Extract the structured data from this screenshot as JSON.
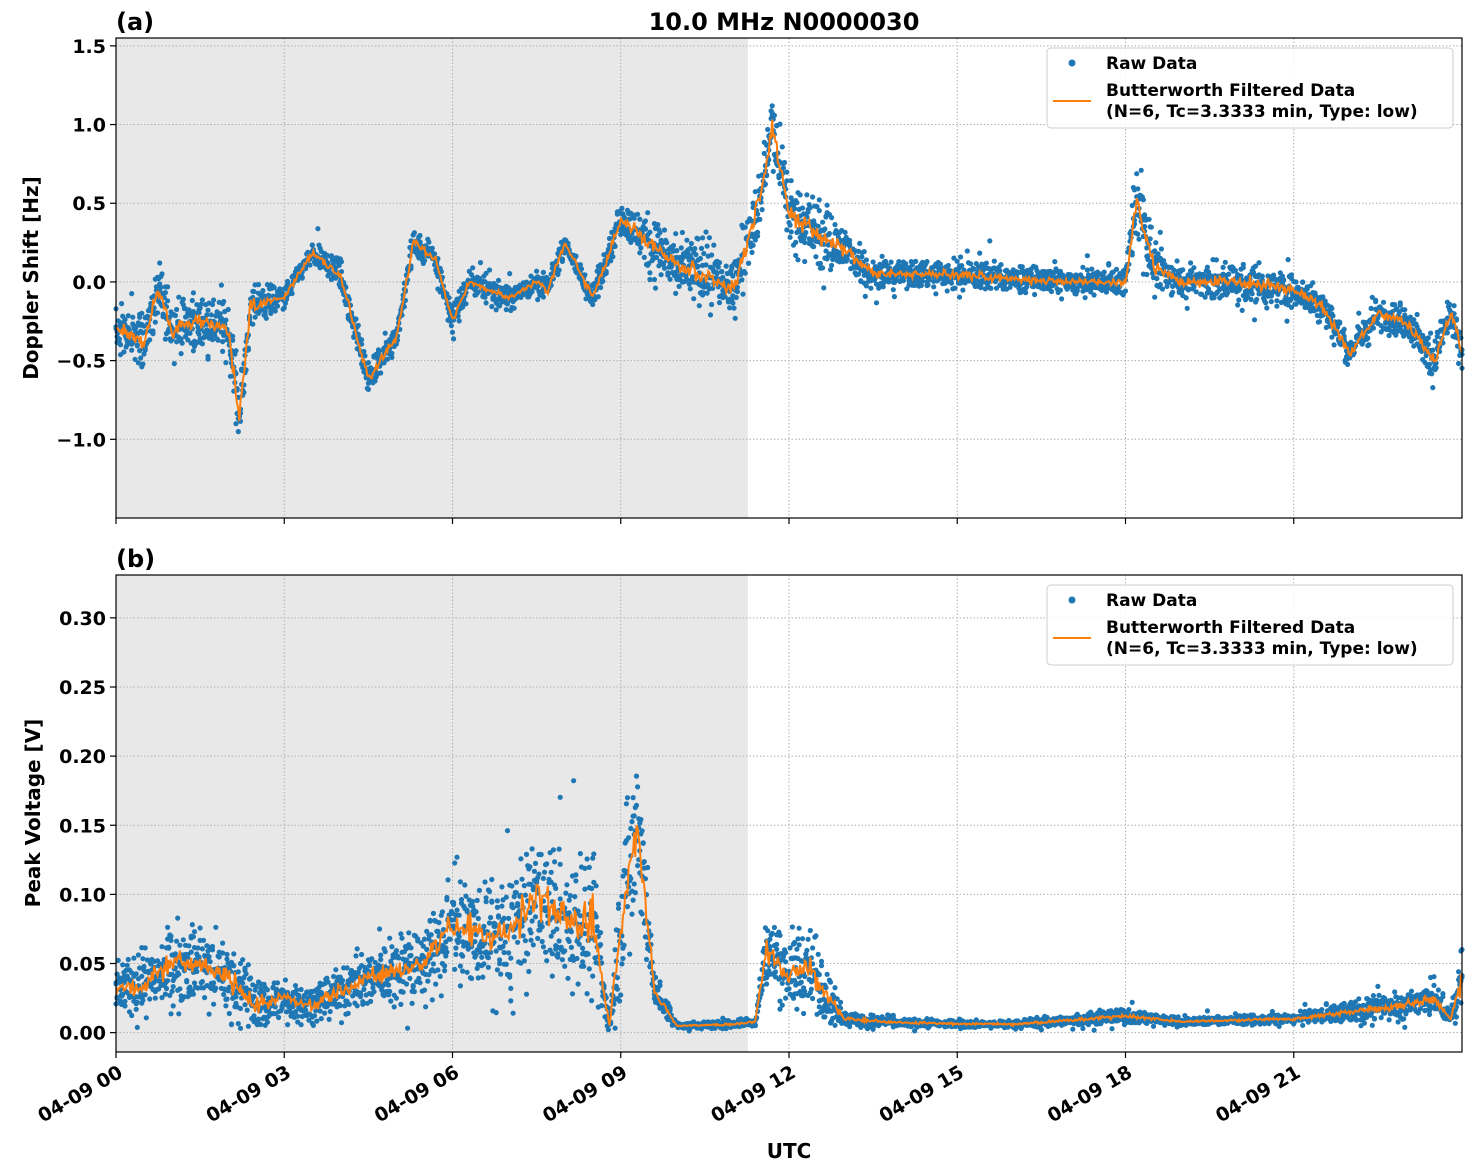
{
  "chart_data": [
    {
      "type": "scatter",
      "panel_label": "(a)",
      "title": "10.0 MHz N0000030",
      "xlabel": "",
      "ylabel": "Doppler Shift [Hz]",
      "xlim": [
        "04-09 00:00",
        "04-10 00:00"
      ],
      "ylim": [
        -1.5,
        1.55
      ],
      "yticks": [
        1.5,
        1.0,
        0.5,
        0.0,
        -0.5,
        -1.0
      ],
      "ytick_labels": [
        "1.5",
        "1.0",
        "0.5",
        "0.0",
        "−0.5",
        "−1.0"
      ],
      "grid": true,
      "shaded_interval": [
        "04-09 00:00",
        "04-09 11:16"
      ],
      "legend_placement": "top-right",
      "legend": [
        "Raw Data",
        "Butterworth Filtered Data",
        "(N=6, Tc=3.3333 min, Type: low)"
      ],
      "series_note_columns": [
        "time",
        "filtered",
        "raw_spread"
      ],
      "series": [
        [
          "04-09 00:00",
          -0.3,
          0.25
        ],
        [
          "04-09 00:30",
          -0.38,
          0.25
        ],
        [
          "04-09 00:45",
          -0.05,
          0.25
        ],
        [
          "04-09 01:00",
          -0.3,
          0.25
        ],
        [
          "04-09 01:30",
          -0.25,
          0.25
        ],
        [
          "04-09 02:00",
          -0.3,
          0.25
        ],
        [
          "04-09 02:12",
          -0.85,
          0.35
        ],
        [
          "04-09 02:24",
          -0.15,
          0.2
        ],
        [
          "04-09 03:00",
          -0.1,
          0.1
        ],
        [
          "04-09 03:30",
          0.18,
          0.1
        ],
        [
          "04-09 04:00",
          0.05,
          0.15
        ],
        [
          "04-09 04:30",
          -0.62,
          0.15
        ],
        [
          "04-09 05:00",
          -0.35,
          0.12
        ],
        [
          "04-09 05:18",
          0.25,
          0.12
        ],
        [
          "04-09 05:42",
          0.15,
          0.12
        ],
        [
          "04-09 06:00",
          -0.25,
          0.15
        ],
        [
          "04-09 06:18",
          0.0,
          0.12
        ],
        [
          "04-09 07:00",
          -0.1,
          0.1
        ],
        [
          "04-09 07:30",
          0.0,
          0.1
        ],
        [
          "04-09 07:42",
          -0.05,
          0.12
        ],
        [
          "04-09 08:00",
          0.25,
          0.1
        ],
        [
          "04-09 08:30",
          -0.1,
          0.12
        ],
        [
          "04-09 09:00",
          0.4,
          0.15
        ],
        [
          "04-09 09:30",
          0.25,
          0.25
        ],
        [
          "04-09 10:00",
          0.1,
          0.25
        ],
        [
          "04-09 10:30",
          0.05,
          0.3
        ],
        [
          "04-09 11:00",
          -0.05,
          0.25
        ],
        [
          "04-09 11:30",
          0.55,
          0.3
        ],
        [
          "04-09 11:42",
          1.0,
          0.35
        ],
        [
          "04-09 12:00",
          0.45,
          0.3
        ],
        [
          "04-09 12:30",
          0.3,
          0.3
        ],
        [
          "04-09 13:00",
          0.2,
          0.25
        ],
        [
          "04-09 13:30",
          0.05,
          0.15
        ],
        [
          "04-09 14:00",
          0.05,
          0.12
        ],
        [
          "04-09 15:00",
          0.05,
          0.15
        ],
        [
          "04-09 16:00",
          0.02,
          0.12
        ],
        [
          "04-09 17:00",
          0.0,
          0.1
        ],
        [
          "04-09 18:00",
          0.0,
          0.12
        ],
        [
          "04-09 18:12",
          0.55,
          0.4
        ],
        [
          "04-09 18:30",
          0.1,
          0.2
        ],
        [
          "04-09 19:00",
          0.0,
          0.15
        ],
        [
          "04-09 20:00",
          0.0,
          0.2
        ],
        [
          "04-09 21:00",
          -0.05,
          0.15
        ],
        [
          "04-09 21:30",
          -0.15,
          0.15
        ],
        [
          "04-09 22:00",
          -0.45,
          0.15
        ],
        [
          "04-09 22:30",
          -0.2,
          0.15
        ],
        [
          "04-09 23:00",
          -0.25,
          0.15
        ],
        [
          "04-09 23:30",
          -0.5,
          0.2
        ],
        [
          "04-09 23:48",
          -0.2,
          0.2
        ],
        [
          "04-10 00:00",
          -0.45,
          0.2
        ]
      ]
    },
    {
      "type": "scatter",
      "panel_label": "(b)",
      "xlabel": "UTC",
      "ylabel": "Peak Voltage [V]",
      "xlim": [
        "04-09 00:00",
        "04-10 00:00"
      ],
      "ylim": [
        -0.014,
        0.331
      ],
      "yticks": [
        0.3,
        0.25,
        0.2,
        0.15,
        0.1,
        0.05,
        0.0
      ],
      "ytick_labels": [
        "0.30",
        "0.25",
        "0.20",
        "0.15",
        "0.10",
        "0.05",
        "0.00"
      ],
      "xtick_labels": [
        "04-09 00",
        "04-09 03",
        "04-09 06",
        "04-09 09",
        "04-09 12",
        "04-09 15",
        "04-09 18",
        "04-09 21"
      ],
      "grid": true,
      "shaded_interval": [
        "04-09 00:00",
        "04-09 11:16"
      ],
      "legend_placement": "top-right",
      "legend": [
        "Raw Data",
        "Butterworth Filtered Data",
        "(N=6, Tc=3.3333 min, Type: low)"
      ],
      "series_note_columns": [
        "time",
        "filtered",
        "raw_spread"
      ],
      "series": [
        [
          "04-09 00:00",
          0.03,
          0.025
        ],
        [
          "04-09 00:30",
          0.035,
          0.03
        ],
        [
          "04-09 01:00",
          0.05,
          0.04
        ],
        [
          "04-09 01:30",
          0.05,
          0.04
        ],
        [
          "04-09 02:00",
          0.04,
          0.04
        ],
        [
          "04-09 02:30",
          0.02,
          0.03
        ],
        [
          "04-09 03:00",
          0.025,
          0.02
        ],
        [
          "04-09 03:30",
          0.02,
          0.02
        ],
        [
          "04-09 04:00",
          0.03,
          0.025
        ],
        [
          "04-09 04:30",
          0.04,
          0.03
        ],
        [
          "04-09 05:00",
          0.045,
          0.035
        ],
        [
          "04-09 05:30",
          0.05,
          0.04
        ],
        [
          "04-09 06:00",
          0.08,
          0.05
        ],
        [
          "04-09 06:30",
          0.07,
          0.05
        ],
        [
          "04-09 07:00",
          0.07,
          0.06
        ],
        [
          "04-09 07:30",
          0.1,
          0.07
        ],
        [
          "04-09 08:00",
          0.08,
          0.07
        ],
        [
          "04-09 08:30",
          0.08,
          0.08
        ],
        [
          "04-09 08:48",
          0.005,
          0.005
        ],
        [
          "04-09 09:00",
          0.08,
          0.08
        ],
        [
          "04-09 09:18",
          0.15,
          0.1
        ],
        [
          "04-09 09:36",
          0.03,
          0.02
        ],
        [
          "04-09 10:00",
          0.005,
          0.003
        ],
        [
          "04-09 11:00",
          0.006,
          0.004
        ],
        [
          "04-09 11:24",
          0.008,
          0.005
        ],
        [
          "04-09 11:36",
          0.06,
          0.04
        ],
        [
          "04-09 12:00",
          0.04,
          0.04
        ],
        [
          "04-09 12:18",
          0.05,
          0.05
        ],
        [
          "04-09 12:48",
          0.02,
          0.02
        ],
        [
          "04-09 13:00",
          0.01,
          0.008
        ],
        [
          "04-09 14:00",
          0.007,
          0.004
        ],
        [
          "04-09 16:00",
          0.006,
          0.004
        ],
        [
          "04-09 18:00",
          0.012,
          0.008
        ],
        [
          "04-09 19:00",
          0.008,
          0.004
        ],
        [
          "04-09 21:00",
          0.01,
          0.005
        ],
        [
          "04-09 22:00",
          0.015,
          0.01
        ],
        [
          "04-09 23:00",
          0.02,
          0.015
        ],
        [
          "04-09 23:30",
          0.025,
          0.02
        ],
        [
          "04-09 23:48",
          0.01,
          0.008
        ],
        [
          "04-10 00:00",
          0.04,
          0.04
        ]
      ]
    }
  ],
  "colors": {
    "raw": "#1f77b4",
    "filtered": "#ff7f0e",
    "shade": "#e8e8e8",
    "grid": "#b0b0b0"
  }
}
